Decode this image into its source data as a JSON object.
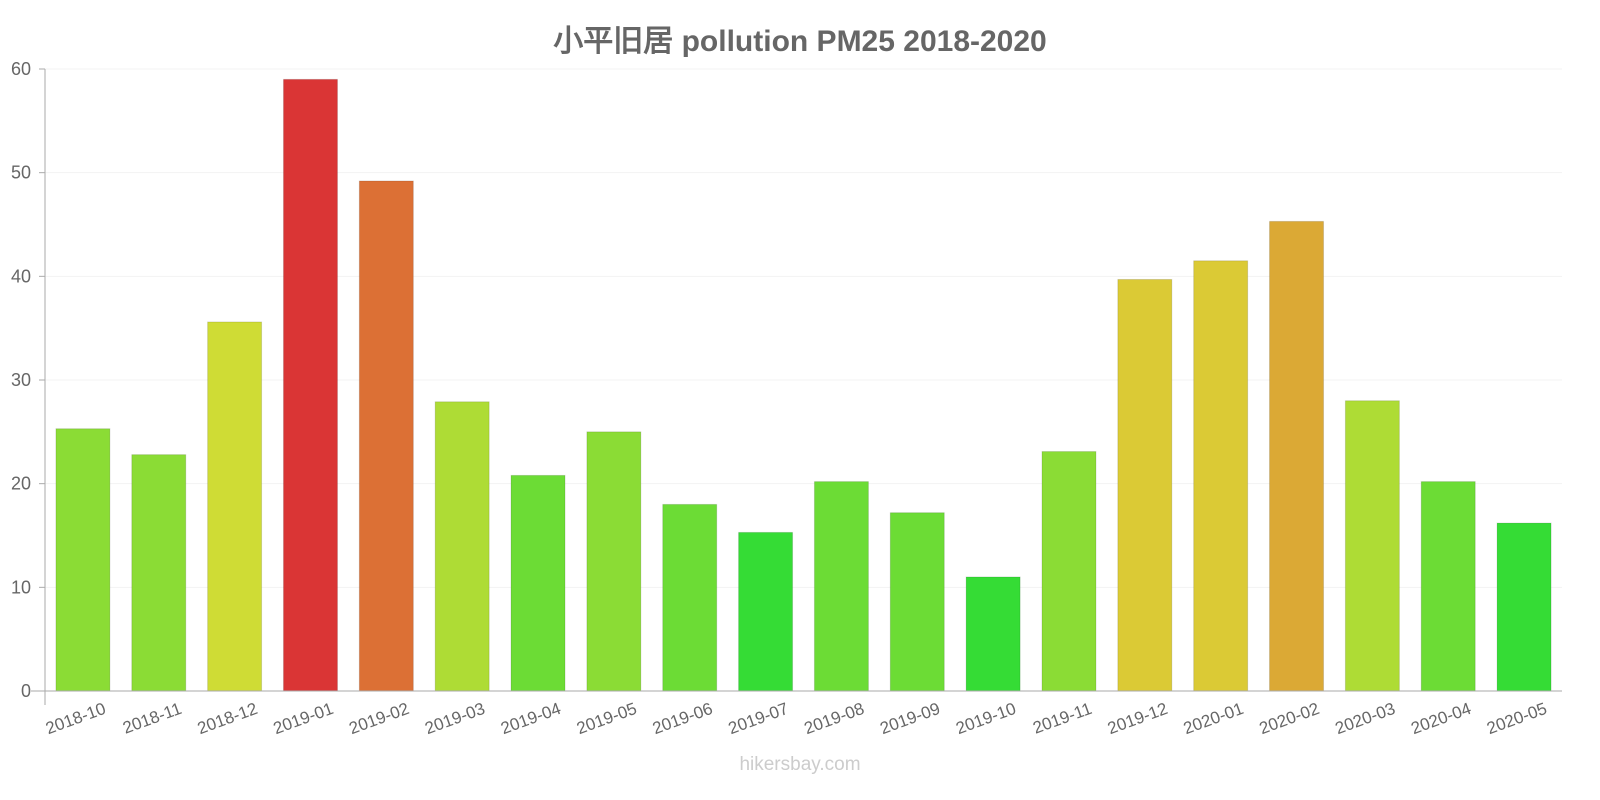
{
  "chart_data": {
    "type": "bar",
    "title": "小平旧居 pollution PM25 2018-2020",
    "xlabel": "",
    "ylabel": "",
    "ylim": [
      0,
      60
    ],
    "yticks": [
      0,
      10,
      20,
      30,
      40,
      50,
      60
    ],
    "grid": true,
    "legend": null,
    "categories": [
      "2018-10",
      "2018-11",
      "2018-12",
      "2019-01",
      "2019-02",
      "2019-03",
      "2019-04",
      "2019-05",
      "2019-06",
      "2019-07",
      "2019-08",
      "2019-09",
      "2019-10",
      "2019-11",
      "2019-12",
      "2020-01",
      "2020-02",
      "2020-03",
      "2020-04",
      "2020-05"
    ],
    "values": [
      25.3,
      22.8,
      35.6,
      59.0,
      49.2,
      27.9,
      20.8,
      25.0,
      18.0,
      15.3,
      20.2,
      17.2,
      11.0,
      23.1,
      39.7,
      41.5,
      45.3,
      28.0,
      20.2,
      16.2
    ],
    "colors": [
      "#8bdc35",
      "#8bdc35",
      "#cfdc35",
      "#da3535",
      "#dc7035",
      "#aedc35",
      "#6cdc35",
      "#8bdc35",
      "#6cdc35",
      "#35dc35",
      "#6cdc35",
      "#6cdc35",
      "#35dc35",
      "#8bdc35",
      "#dbca35",
      "#dbca35",
      "#dba935",
      "#aedc35",
      "#6cdc35",
      "#35dc35"
    ]
  },
  "watermark": "hikersbay.com"
}
